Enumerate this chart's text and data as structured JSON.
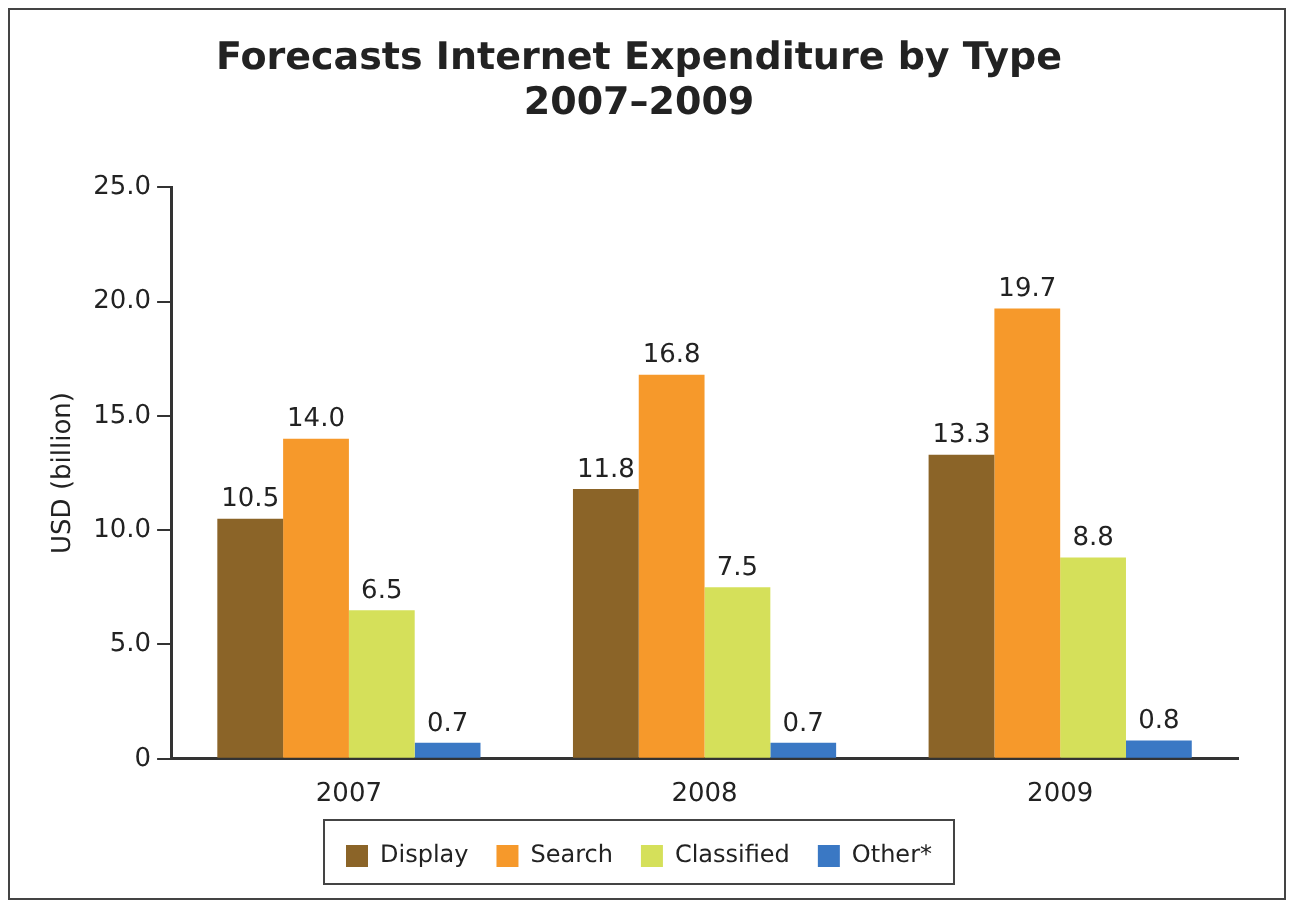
{
  "chart_data": {
    "type": "bar",
    "title": "Forecasts Internet Expenditure by Type\n2007–2009",
    "ylabel": "USD (billion)",
    "categories": [
      "2007",
      "2008",
      "2009"
    ],
    "series": [
      {
        "name": "Display",
        "color": "#8b6428",
        "values": [
          10.5,
          11.8,
          13.3
        ],
        "value_labels": [
          "10.5",
          "11.8",
          "13.3"
        ]
      },
      {
        "name": "Search",
        "color": "#f6992b",
        "values": [
          14.0,
          16.8,
          19.7
        ],
        "value_labels": [
          "14.0",
          "16.8",
          "19.7"
        ]
      },
      {
        "name": "Classified",
        "color": "#d5e05a",
        "values": [
          6.5,
          7.5,
          8.8
        ],
        "value_labels": [
          "6.5",
          "7.5",
          "8.8"
        ]
      },
      {
        "name": "Other*",
        "color": "#3a78c4",
        "values": [
          0.7,
          0.7,
          0.8
        ],
        "value_labels": [
          "0.7",
          "0.7",
          "0.8"
        ]
      }
    ],
    "ylim": [
      0,
      25
    ],
    "yticks": [
      {
        "value": 0,
        "label": "0"
      },
      {
        "value": 5,
        "label": "5.0"
      },
      {
        "value": 10,
        "label": "10.0"
      },
      {
        "value": 15,
        "label": "15.0"
      },
      {
        "value": 20,
        "label": "20.0"
      },
      {
        "value": 25,
        "label": "25.0"
      }
    ],
    "grid": false,
    "legend": "bottom"
  }
}
